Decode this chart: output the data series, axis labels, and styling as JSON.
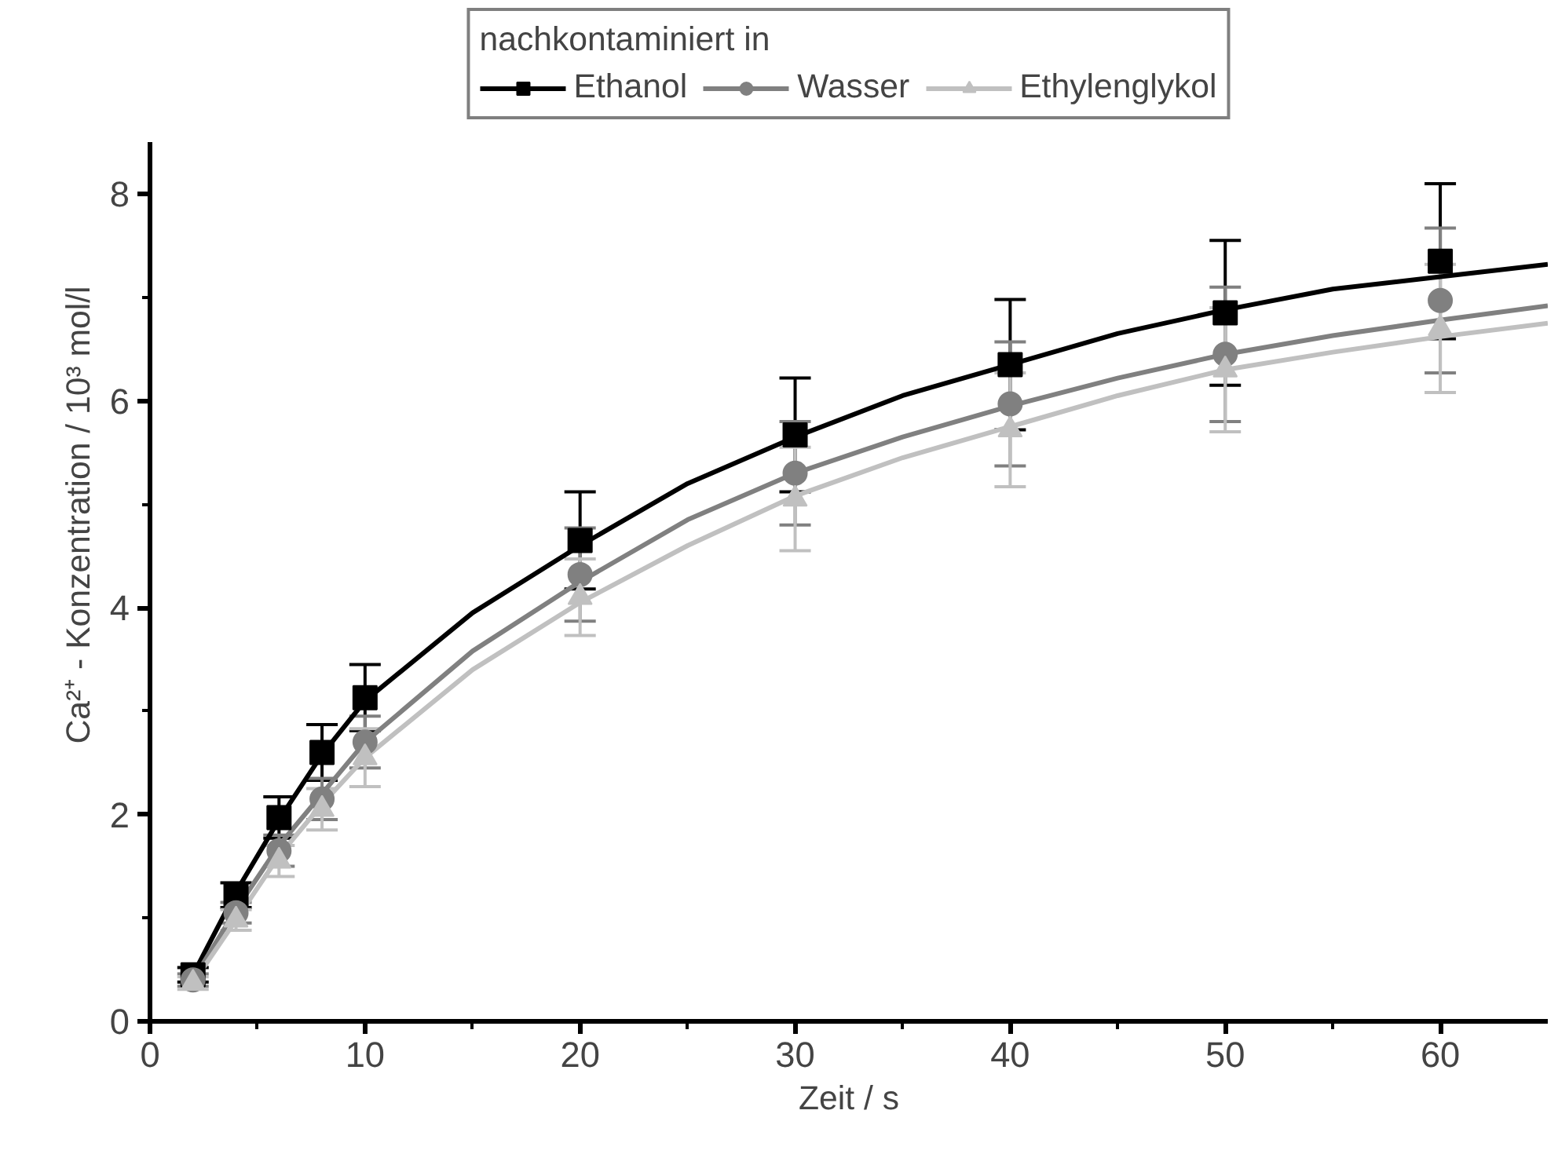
{
  "chart_data": {
    "type": "scatter",
    "xlabel": "Zeit / s",
    "ylabel": "Ca²⁺ - Konzentration / 10³ mol/l",
    "legend_title": "nachkontaminiert in",
    "legend": "top",
    "grid": false,
    "xlim": [
      0,
      65
    ],
    "ylim": [
      0,
      8.5
    ],
    "xticks": [
      0,
      10,
      20,
      30,
      40,
      50,
      60
    ],
    "yticks": [
      0,
      2,
      4,
      6,
      8
    ],
    "x": [
      2,
      4,
      6,
      8,
      10,
      20,
      30,
      40,
      50,
      60
    ],
    "series": [
      {
        "name": "Ethanol",
        "color": "#000000",
        "marker": "square",
        "values": [
          0.45,
          1.22,
          1.97,
          2.6,
          3.13,
          4.65,
          5.67,
          6.35,
          6.85,
          7.35
        ],
        "errors": [
          0.07,
          0.12,
          0.2,
          0.27,
          0.32,
          0.47,
          0.55,
          0.63,
          0.7,
          0.75
        ]
      },
      {
        "name": "Wasser",
        "color": "#808080",
        "marker": "circle",
        "values": [
          0.4,
          1.05,
          1.65,
          2.15,
          2.7,
          4.32,
          5.3,
          5.97,
          6.45,
          6.97
        ],
        "errors": [
          0.06,
          0.1,
          0.15,
          0.2,
          0.25,
          0.45,
          0.5,
          0.6,
          0.65,
          0.7
        ]
      },
      {
        "name": "Ethylenglykol",
        "color": "#c0c0c0",
        "marker": "triangle",
        "values": [
          0.37,
          0.98,
          1.55,
          2.05,
          2.55,
          4.1,
          5.05,
          5.72,
          6.3,
          6.7
        ],
        "errors": [
          0.06,
          0.1,
          0.15,
          0.2,
          0.28,
          0.37,
          0.5,
          0.55,
          0.6,
          0.62
        ]
      },
      {
        "type": "line",
        "color": "#000000",
        "x": [
          2,
          4,
          6,
          8,
          10,
          15,
          20,
          25,
          30,
          35,
          40,
          45,
          50,
          55,
          60,
          65
        ],
        "values": [
          0.45,
          1.25,
          1.95,
          2.58,
          3.1,
          3.95,
          4.6,
          5.2,
          5.65,
          6.05,
          6.35,
          6.65,
          6.88,
          7.08,
          7.2,
          7.32
        ]
      },
      {
        "type": "line",
        "color": "#808080",
        "x": [
          2,
          4,
          6,
          8,
          10,
          15,
          20,
          25,
          30,
          35,
          40,
          45,
          50,
          55,
          60,
          65
        ],
        "values": [
          0.4,
          1.08,
          1.7,
          2.2,
          2.7,
          3.58,
          4.25,
          4.85,
          5.3,
          5.65,
          5.95,
          6.22,
          6.45,
          6.63,
          6.78,
          6.92
        ]
      },
      {
        "type": "line",
        "color": "#c0c0c0",
        "x": [
          2,
          4,
          6,
          8,
          10,
          15,
          20,
          25,
          30,
          35,
          40,
          45,
          50,
          55,
          60,
          65
        ],
        "values": [
          0.37,
          0.98,
          1.6,
          2.1,
          2.55,
          3.4,
          4.05,
          4.6,
          5.08,
          5.45,
          5.75,
          6.05,
          6.3,
          6.47,
          6.62,
          6.75
        ]
      }
    ]
  }
}
